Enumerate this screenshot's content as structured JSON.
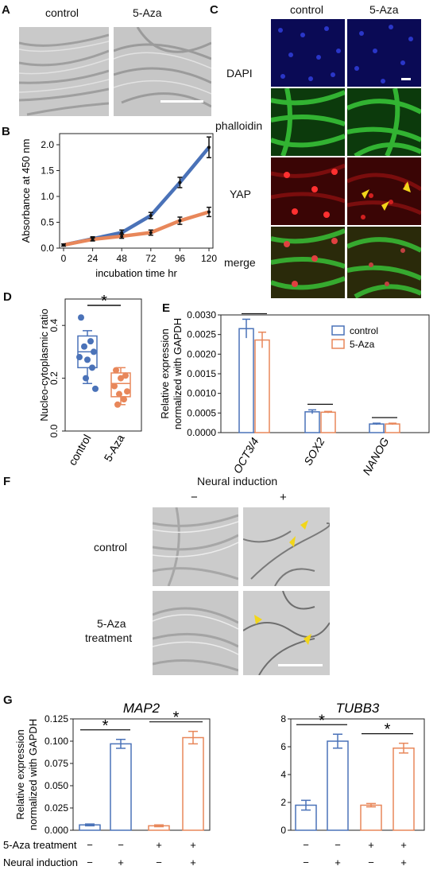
{
  "panel_letters": {
    "a": "A",
    "b": "B",
    "c": "C",
    "d": "D",
    "e": "E",
    "f": "F",
    "g": "G"
  },
  "panelA": {
    "labels": [
      "control",
      "5-Aza"
    ]
  },
  "panelC": {
    "col_labels": [
      "control",
      "5-Aza"
    ],
    "row_labels": [
      "DAPI",
      "phalloidin",
      "YAP",
      "merge"
    ]
  },
  "panelF": {
    "title": "Neural induction",
    "minus": "−",
    "plus": "+",
    "row_labels": [
      "control",
      "5-Aza",
      "treatment"
    ]
  },
  "panelG": {
    "row_labels": [
      "5-Aza treatment",
      "Neural induction"
    ],
    "signs": {
      "aza": [
        "−",
        "−",
        "+",
        "+"
      ],
      "neural": [
        "−",
        "+",
        "−",
        "+"
      ]
    }
  },
  "colors": {
    "control": "#4a72b8",
    "aza": "#e8875a",
    "dapi": "#0a0a6a",
    "phalloidin": "#2fb82f",
    "yap": "#b01818",
    "arrow": "#f2d61a"
  },
  "chart_data": [
    {
      "id": "B",
      "type": "line",
      "x": [
        0,
        24,
        48,
        72,
        96,
        120
      ],
      "series": [
        {
          "values": [
            0.06,
            0.18,
            0.3,
            0.63,
            1.27,
            1.95
          ],
          "errors": [
            0.02,
            0.04,
            0.05,
            0.06,
            0.1,
            0.2
          ],
          "color": "#4a72b8"
        },
        {
          "values": [
            0.06,
            0.17,
            0.23,
            0.3,
            0.53,
            0.7
          ],
          "errors": [
            0.02,
            0.03,
            0.04,
            0.05,
            0.07,
            0.09
          ],
          "color": "#e8875a"
        }
      ],
      "xlabel": "incubation time hr",
      "ylabel": "Absorbance at 450 nm",
      "xlim": [
        0,
        120
      ],
      "ylim": [
        0,
        2.0
      ],
      "xticks": [
        "0",
        "24",
        "48",
        "72",
        "96",
        "120"
      ],
      "yticks": [
        "0.0",
        "0.5",
        "1.0",
        "1.5",
        "2.0"
      ]
    },
    {
      "id": "D",
      "type": "scatter",
      "categories": [
        "control",
        "5-Aza"
      ],
      "ylabel": "Nucleo-cytoplasmic ratio",
      "ylim": [
        0,
        0.5
      ],
      "yticks": [
        "0.0",
        "0.2",
        "0.4"
      ],
      "significance": "*",
      "groups": [
        {
          "points": [
            0.43,
            0.34,
            0.32,
            0.3,
            0.28,
            0.27,
            0.24,
            0.2,
            0.16
          ],
          "box": [
            0.18,
            0.24,
            0.3,
            0.36,
            0.38
          ],
          "color": "#4a72b8"
        },
        {
          "points": [
            0.23,
            0.21,
            0.2,
            0.17,
            0.15,
            0.14,
            0.12,
            0.1
          ],
          "box": [
            0.1,
            0.13,
            0.18,
            0.22,
            0.24
          ],
          "color": "#e8875a"
        }
      ]
    },
    {
      "id": "E",
      "type": "bar",
      "categories": [
        "OCT3/4",
        "SOX2",
        "NANOG"
      ],
      "ylabel": "Relative expression normalized with GAPDH",
      "ylim": [
        0,
        0.003
      ],
      "yticks": [
        "0.0000",
        "0.0005",
        "0.0010",
        "0.0015",
        "0.0020",
        "0.0025",
        "0.0030"
      ],
      "series": [
        {
          "name": "control",
          "values": [
            0.00265,
            0.00053,
            0.00022
          ],
          "errors": [
            0.00024,
            5e-05,
            2e-05
          ],
          "color": "#4a72b8"
        },
        {
          "name": "5-Aza",
          "values": [
            0.00236,
            0.00052,
            0.00022
          ],
          "errors": [
            0.0002,
            2e-05,
            2e-05
          ],
          "color": "#e8875a"
        }
      ]
    },
    {
      "id": "G1",
      "type": "bar",
      "title": "MAP2",
      "ylabel": "Relative expression normalized with GAPDH",
      "ylim": [
        0,
        0.125
      ],
      "yticks": [
        "0.000",
        "0.025",
        "0.050",
        "0.075",
        "0.100",
        "0.125"
      ],
      "values": [
        0.006,
        0.097,
        0.005,
        0.104
      ],
      "errors": [
        0.001,
        0.005,
        0.001,
        0.007
      ],
      "colors": [
        "#4a72b8",
        "#4a72b8",
        "#e8875a",
        "#e8875a"
      ],
      "significance": "*"
    },
    {
      "id": "G2",
      "type": "bar",
      "title": "TUBB3",
      "ylim": [
        0,
        8
      ],
      "yticks": [
        "0",
        "2",
        "4",
        "6",
        "8"
      ],
      "values": [
        1.8,
        6.4,
        1.8,
        5.9
      ],
      "errors": [
        0.35,
        0.5,
        0.12,
        0.35
      ],
      "colors": [
        "#4a72b8",
        "#4a72b8",
        "#e8875a",
        "#e8875a"
      ],
      "significance": "*"
    }
  ]
}
